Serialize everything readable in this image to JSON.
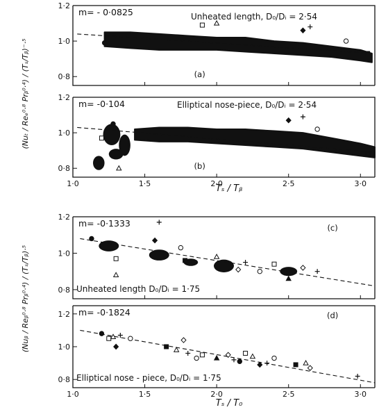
{
  "chart_data": [
    {
      "type": "scatter",
      "panel_label": "(a)",
      "slope_text": "m= - 0·0825",
      "annotation": "Unheated length, D₀/Dᵢ = 2·54",
      "ylabel": "(Nuₜ / Reₑ⁰·⁸ Prᵦ⁰·⁴) / (Tₛ/Tᵦ)⁻·⁵",
      "xlim": [
        1.0,
        3.1
      ],
      "ylim": [
        0.75,
        1.2
      ],
      "yticks": [
        "0·8",
        "1·0",
        "1·2"
      ],
      "x_tick_labels": [],
      "trend": {
        "slope": -0.0825,
        "points": [
          [
            1.03,
            1.04
          ],
          [
            3.1,
            0.93
          ]
        ]
      },
      "band": {
        "x": [
          1.22,
          1.4,
          1.6,
          1.8,
          2.0,
          2.2,
          2.4,
          2.6,
          2.8,
          3.0,
          3.08
        ],
        "upper": [
          1.05,
          1.05,
          1.04,
          1.03,
          1.02,
          1.02,
          1.0,
          0.99,
          0.97,
          0.95,
          0.93
        ],
        "lower": [
          0.97,
          0.96,
          0.95,
          0.95,
          0.95,
          0.94,
          0.93,
          0.92,
          0.91,
          0.89,
          0.88
        ]
      },
      "points": [
        [
          1.22,
          0.99
        ],
        [
          1.9,
          1.09
        ],
        [
          2.0,
          1.1
        ],
        [
          2.6,
          1.06
        ],
        [
          2.65,
          1.08
        ],
        [
          2.9,
          1.0
        ],
        [
          3.05,
          0.93
        ]
      ]
    },
    {
      "type": "scatter",
      "panel_label": "(b)",
      "slope_text": "m= -0·104",
      "annotation": "Elliptical nose-piece, D₀/Dᵢ = 2·54",
      "ylabel": "(Nuᵦ / Reᵦ⁰·⁸ Prᵦ⁰·⁴)",
      "xlim": [
        1.0,
        3.1
      ],
      "ylim": [
        0.75,
        1.2
      ],
      "yticks": [
        "0·8",
        "1·0",
        "1·2"
      ],
      "x_tick_labels": [
        "1·0",
        "1·5",
        "2·0",
        "2·5",
        "3·0"
      ],
      "x_ticks": [
        1.0,
        1.5,
        2.0,
        2.5,
        3.0
      ],
      "trend": {
        "slope": -0.104,
        "points": [
          [
            1.03,
            1.03
          ],
          [
            3.1,
            0.89
          ]
        ]
      },
      "band": {
        "x": [
          1.43,
          1.6,
          1.8,
          2.0,
          2.2,
          2.4,
          2.6,
          2.8,
          3.0,
          3.1
        ],
        "upper": [
          1.02,
          1.03,
          1.03,
          1.02,
          1.02,
          1.01,
          1.0,
          0.97,
          0.94,
          0.92
        ],
        "lower": [
          0.96,
          0.95,
          0.95,
          0.94,
          0.93,
          0.92,
          0.91,
          0.89,
          0.87,
          0.86
        ]
      },
      "clusters": [
        {
          "x": 1.18,
          "y": 0.83,
          "rx": 0.04,
          "ry": 0.04
        },
        {
          "x": 1.27,
          "y": 0.99,
          "rx": 0.06,
          "ry": 0.06
        },
        {
          "x": 1.3,
          "y": 0.88,
          "rx": 0.05,
          "ry": 0.03
        },
        {
          "x": 1.36,
          "y": 0.93,
          "rx": 0.04,
          "ry": 0.06
        }
      ],
      "points": [
        [
          1.28,
          1.05
        ],
        [
          1.2,
          0.97
        ],
        [
          1.32,
          0.8
        ],
        [
          2.5,
          1.07
        ],
        [
          2.6,
          1.09
        ],
        [
          2.7,
          1.02
        ],
        [
          3.05,
          0.88
        ]
      ]
    },
    {
      "type": "scatter",
      "panel_label": "(c)",
      "slope_text": "m= -0·1333",
      "annotation": "Unheated length D₀/Dᵢ = 1·75",
      "ylabel": "(Nuᵦ / Reᵦ⁰·⁸ Prᵦ⁰·⁴) / (Tₛ/Tᵦ)·⁵",
      "xlim": [
        1.0,
        3.1
      ],
      "ylim": [
        0.75,
        1.2
      ],
      "yticks": [
        "0·8",
        "1·0",
        "1·2"
      ],
      "x_tick_labels": [],
      "trend": {
        "slope": -0.1333,
        "points": [
          [
            1.05,
            1.08
          ],
          [
            3.1,
            0.82
          ]
        ]
      },
      "clusters": [
        {
          "x": 1.25,
          "y": 1.04,
          "rx": 0.07,
          "ry": 0.03
        },
        {
          "x": 1.6,
          "y": 0.99,
          "rx": 0.07,
          "ry": 0.03
        },
        {
          "x": 1.82,
          "y": 0.95,
          "rx": 0.05,
          "ry": 0.02
        },
        {
          "x": 2.05,
          "y": 0.93,
          "rx": 0.07,
          "ry": 0.035
        },
        {
          "x": 2.5,
          "y": 0.9,
          "rx": 0.06,
          "ry": 0.025
        }
      ],
      "points": [
        [
          1.13,
          1.08
        ],
        [
          1.3,
          0.97
        ],
        [
          1.3,
          0.88
        ],
        [
          1.57,
          1.07
        ],
        [
          1.6,
          1.17
        ],
        [
          1.75,
          1.03
        ],
        [
          1.78,
          0.96
        ],
        [
          2.0,
          0.98
        ],
        [
          2.15,
          0.91
        ],
        [
          2.2,
          0.95
        ],
        [
          2.3,
          0.9
        ],
        [
          2.4,
          0.94
        ],
        [
          2.5,
          0.86
        ],
        [
          2.6,
          0.92
        ],
        [
          2.7,
          0.9
        ]
      ]
    },
    {
      "type": "scatter",
      "panel_label": "(d)",
      "slope_text": "m= -0·1824",
      "annotation": "Elliptical nose - piece, D₀/Dᵢ = 1·75",
      "ylabel": "(Nuᵦ / Reᵦ⁰·⁸ Prᵦ⁰·⁴)",
      "xlim": [
        1.0,
        3.1
      ],
      "ylim": [
        0.75,
        1.25
      ],
      "yticks": [
        "0·8",
        "1·0",
        "1·2"
      ],
      "x_tick_labels": [
        "1·0",
        "1·5",
        "2·0",
        "2·5",
        "3·0"
      ],
      "x_ticks": [
        1.0,
        1.5,
        2.0,
        2.5,
        3.0
      ],
      "trend": {
        "slope": -0.1824,
        "points": [
          [
            1.05,
            1.1
          ],
          [
            3.1,
            0.78
          ]
        ]
      },
      "points": [
        [
          1.2,
          1.08
        ],
        [
          1.25,
          1.05
        ],
        [
          1.28,
          1.06
        ],
        [
          1.3,
          1.0
        ],
        [
          1.33,
          1.07
        ],
        [
          1.4,
          1.05
        ],
        [
          1.65,
          1.0
        ],
        [
          1.72,
          0.98
        ],
        [
          1.77,
          1.04
        ],
        [
          1.8,
          0.96
        ],
        [
          1.86,
          0.93
        ],
        [
          1.9,
          0.95
        ],
        [
          2.0,
          0.93
        ],
        [
          2.08,
          0.95
        ],
        [
          2.12,
          0.92
        ],
        [
          2.16,
          0.91
        ],
        [
          2.2,
          0.96
        ],
        [
          2.25,
          0.94
        ],
        [
          2.3,
          0.89
        ],
        [
          2.35,
          0.9
        ],
        [
          2.4,
          0.93
        ],
        [
          2.55,
          0.89
        ],
        [
          2.62,
          0.9
        ],
        [
          2.65,
          0.87
        ],
        [
          2.98,
          0.82
        ]
      ]
    }
  ],
  "xlabels": [
    "Tₛ / Tᵦ",
    "Tₛ / T₀"
  ]
}
